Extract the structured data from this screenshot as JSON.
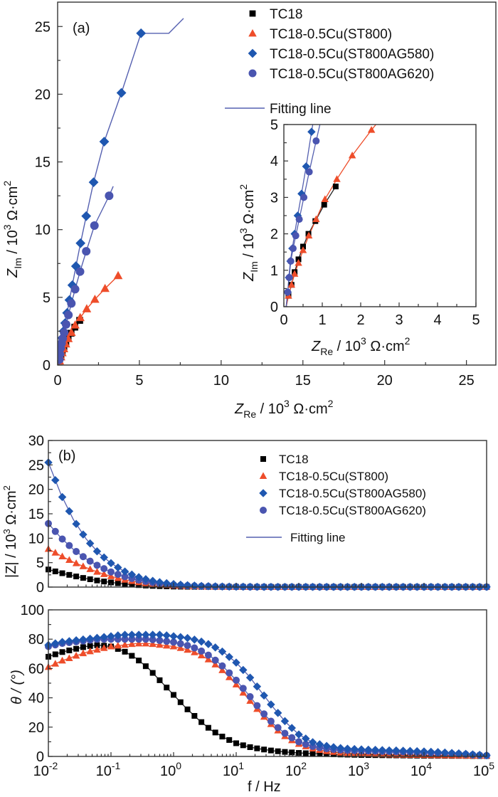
{
  "chart_data": [
    {
      "id": "nyquist-main",
      "type": "scatter",
      "panel_label": "(a)",
      "xlabel_main": "Z",
      "xlabel_sub": "Re",
      "xlabel_rest": " / 10",
      "xlabel_sup": "3",
      "xlabel_unit": " Ω·cm",
      "xlabel_unit_sup": "2",
      "ylabel_main": "Z",
      "ylabel_sub": "Im",
      "ylabel_rest": " / 10",
      "ylabel_sup": "3",
      "ylabel_unit": " Ω·cm",
      "ylabel_unit_sup": "2",
      "xlim": [
        0,
        26.8
      ],
      "ylim": [
        0,
        26.8
      ],
      "xticks": [
        0,
        5,
        10,
        15,
        20,
        25
      ],
      "yticks": [
        0,
        5,
        10,
        15,
        20,
        25
      ],
      "legend_position": "top-right",
      "series": [
        {
          "name": "TC18",
          "marker": "square",
          "color": "#000000",
          "x": [
            0.12,
            0.2,
            0.28,
            0.38,
            0.5,
            0.64,
            0.82,
            1.05,
            1.35
          ],
          "y": [
            0.3,
            0.6,
            0.95,
            1.3,
            1.65,
            2.0,
            2.35,
            2.8,
            3.3
          ]
        },
        {
          "name": "TC18-0.5Cu(ST800)",
          "marker": "triangle",
          "color": "#EE4D2A",
          "x": [
            0.12,
            0.2,
            0.28,
            0.38,
            0.5,
            0.65,
            0.84,
            1.07,
            1.38,
            1.78,
            2.28,
            2.9,
            3.7
          ],
          "y": [
            0.3,
            0.6,
            0.9,
            1.2,
            1.55,
            1.95,
            2.4,
            2.95,
            3.5,
            4.15,
            4.85,
            5.65,
            6.6
          ]
        },
        {
          "name": "TC18-0.5Cu(ST800AG580)",
          "marker": "diamond",
          "color": "#1F57B0",
          "x": [
            0.1,
            0.13,
            0.17,
            0.22,
            0.28,
            0.36,
            0.46,
            0.58,
            0.72,
            0.9,
            1.12,
            1.4,
            1.75,
            2.2,
            2.85,
            3.9,
            5.1,
            6.8
          ],
          "y": [
            0.4,
            0.8,
            1.25,
            1.6,
            2.0,
            2.5,
            3.1,
            3.85,
            4.8,
            5.9,
            7.3,
            9.0,
            11.0,
            13.5,
            16.5,
            20.1,
            24.5,
            24.5
          ]
        },
        {
          "name": "TC18-0.5Cu(ST800AG620)",
          "marker": "circle",
          "color": "#4A55B0",
          "x": [
            0.1,
            0.14,
            0.18,
            0.24,
            0.31,
            0.4,
            0.52,
            0.66,
            0.84,
            1.07,
            1.37,
            1.75,
            2.25,
            3.15
          ],
          "y": [
            0.4,
            0.8,
            1.25,
            1.6,
            1.95,
            2.4,
            3.0,
            3.7,
            4.55,
            5.6,
            6.9,
            8.4,
            10.3,
            12.5
          ]
        }
      ],
      "fit_line_label": "Fitting line",
      "fit_line_color": "#5560B0"
    },
    {
      "id": "nyquist-inset",
      "type": "scatter",
      "xlim": [
        0,
        5
      ],
      "ylim": [
        0,
        5
      ],
      "xticks": [
        0,
        1,
        2,
        3,
        4,
        5
      ],
      "yticks": [
        0,
        1,
        2,
        3,
        4,
        5
      ]
    },
    {
      "id": "bode-modulus",
      "type": "scatter",
      "panel_label": "(b)",
      "ylabel": "|Z| / 10",
      "ylabel_sup": "3",
      "ylabel_unit": " Ω·cm",
      "ylabel_unit_sup": "2",
      "xscale": "log",
      "xlim": [
        0.01,
        100000
      ],
      "ylim": [
        0,
        30
      ],
      "yticks": [
        0,
        5,
        10,
        15,
        20,
        25,
        30
      ],
      "legend_position": "top-right"
    },
    {
      "id": "bode-phase",
      "type": "scatter",
      "ylabel": "θ / (°)",
      "xlabel": "f / Hz",
      "xscale": "log",
      "xlim": [
        0.01,
        100000
      ],
      "ylim": [
        0,
        100
      ],
      "yticks": [
        0,
        20,
        40,
        60,
        80,
        100
      ],
      "xtick_exponents": [
        "-2",
        "-1",
        "0",
        "1",
        "2",
        "3",
        "4",
        "5"
      ]
    }
  ],
  "bode": {
    "freq_log10": [
      -2.0,
      -1.8,
      -1.6,
      -1.4,
      -1.2,
      -1.0,
      -0.8,
      -0.6,
      -0.4,
      -0.2,
      0.0,
      0.2,
      0.4,
      0.6,
      0.8,
      1.0,
      1.2,
      1.4,
      1.6,
      1.8,
      2.0,
      2.2,
      2.4,
      2.6,
      2.8,
      3.0,
      3.2,
      3.4,
      3.6,
      3.8,
      4.0,
      4.2,
      4.4,
      4.6,
      4.8,
      5.0
    ],
    "series": [
      {
        "name": "TC18",
        "marker": "square",
        "color": "#000000",
        "modulus": [
          3.6,
          2.9,
          2.3,
          1.75,
          1.3,
          0.95,
          0.66,
          0.44,
          0.28,
          0.18,
          0.11,
          0.07,
          0.05,
          0.04,
          0.035,
          0.032,
          0.031,
          0.03,
          0.03,
          0.03,
          0.03,
          0.03,
          0.03,
          0.03,
          0.03,
          0.03,
          0.03,
          0.03,
          0.03,
          0.03,
          0.03,
          0.03,
          0.03,
          0.03,
          0.03,
          0.03
        ],
        "phase": [
          68,
          71,
          73,
          75,
          76,
          75,
          72,
          67,
          60,
          51,
          42,
          33,
          25,
          18,
          13,
          9,
          6.5,
          5,
          3.8,
          3,
          2.4,
          2,
          1.7,
          1.4,
          1.2,
          1.0,
          0.9,
          0.8,
          0.7,
          0.6,
          0.5,
          0.5,
          0.4,
          0.4,
          0.3,
          0.3
        ]
      },
      {
        "name": "TC18-0.5Cu(ST800)",
        "marker": "triangle",
        "color": "#EE4D2A",
        "modulus": [
          7.8,
          6.4,
          5.1,
          4.0,
          3.0,
          2.2,
          1.55,
          1.05,
          0.7,
          0.47,
          0.31,
          0.21,
          0.14,
          0.1,
          0.07,
          0.05,
          0.04,
          0.035,
          0.033,
          0.032,
          0.03,
          0.03,
          0.03,
          0.03,
          0.03,
          0.03,
          0.03,
          0.03,
          0.03,
          0.03,
          0.03,
          0.03,
          0.03,
          0.03,
          0.03,
          0.03
        ],
        "phase": [
          61,
          65,
          68,
          71,
          73,
          75,
          76,
          77,
          77,
          76,
          75,
          73,
          70,
          65,
          58,
          49,
          39,
          29,
          20,
          13,
          8.5,
          5.5,
          3.8,
          2.8,
          2.2,
          1.8,
          1.5,
          1.3,
          1.1,
          1,
          0.9,
          0.8,
          0.7,
          0.6,
          0.5,
          0.4
        ]
      },
      {
        "name": "TC18-0.5Cu(ST800AG580)",
        "marker": "diamond",
        "color": "#1F57B0",
        "modulus": [
          25.5,
          19.0,
          13.8,
          9.9,
          7.0,
          4.9,
          3.3,
          2.2,
          1.45,
          0.95,
          0.62,
          0.4,
          0.26,
          0.17,
          0.11,
          0.075,
          0.055,
          0.045,
          0.04,
          0.037,
          0.035,
          0.034,
          0.033,
          0.032,
          0.032,
          0.031,
          0.031,
          0.03,
          0.03,
          0.03,
          0.03,
          0.03,
          0.03,
          0.03,
          0.03,
          0.03
        ],
        "phase": [
          76,
          78,
          79,
          80,
          81,
          82,
          83,
          83,
          83,
          83,
          82,
          81,
          79,
          76,
          71,
          64,
          55,
          44,
          33,
          23,
          15,
          10,
          7.5,
          6,
          5.2,
          4.8,
          4.5,
          4.2,
          4,
          3.7,
          3.4,
          3,
          2.5,
          2,
          1.3,
          0.8
        ]
      },
      {
        "name": "TC18-0.5Cu(ST800AG620)",
        "marker": "circle",
        "color": "#4A55B0",
        "modulus": [
          13.0,
          10.1,
          7.7,
          5.8,
          4.3,
          3.1,
          2.2,
          1.55,
          1.05,
          0.7,
          0.46,
          0.3,
          0.2,
          0.13,
          0.09,
          0.065,
          0.05,
          0.042,
          0.038,
          0.035,
          0.034,
          0.033,
          0.032,
          0.031,
          0.031,
          0.03,
          0.03,
          0.03,
          0.03,
          0.03,
          0.03,
          0.03,
          0.03,
          0.03,
          0.03,
          0.03
        ],
        "phase": [
          75,
          77,
          78,
          79,
          80,
          80,
          80,
          80,
          80,
          79,
          78,
          76,
          73,
          68,
          61,
          52,
          42,
          31,
          22,
          15,
          10,
          7,
          5.5,
          4.6,
          4.1,
          3.8,
          3.6,
          3.4,
          3.2,
          3,
          2.7,
          2.4,
          2,
          1.6,
          1.1,
          0.6
        ]
      }
    ],
    "fit_line_label": "Fitting line",
    "fit_line_color": "#5560B0"
  },
  "legend": {
    "items": [
      {
        "label": "TC18",
        "marker": "square",
        "color": "#000000"
      },
      {
        "label": "TC18-0.5Cu(ST800)",
        "marker": "triangle",
        "color": "#EE4D2A"
      },
      {
        "label": "TC18-0.5Cu(ST800AG580)",
        "marker": "diamond",
        "color": "#1F57B0"
      },
      {
        "label": "TC18-0.5Cu(ST800AG620)",
        "marker": "circle",
        "color": "#4A55B0"
      }
    ],
    "fit_label": "Fitting line"
  }
}
